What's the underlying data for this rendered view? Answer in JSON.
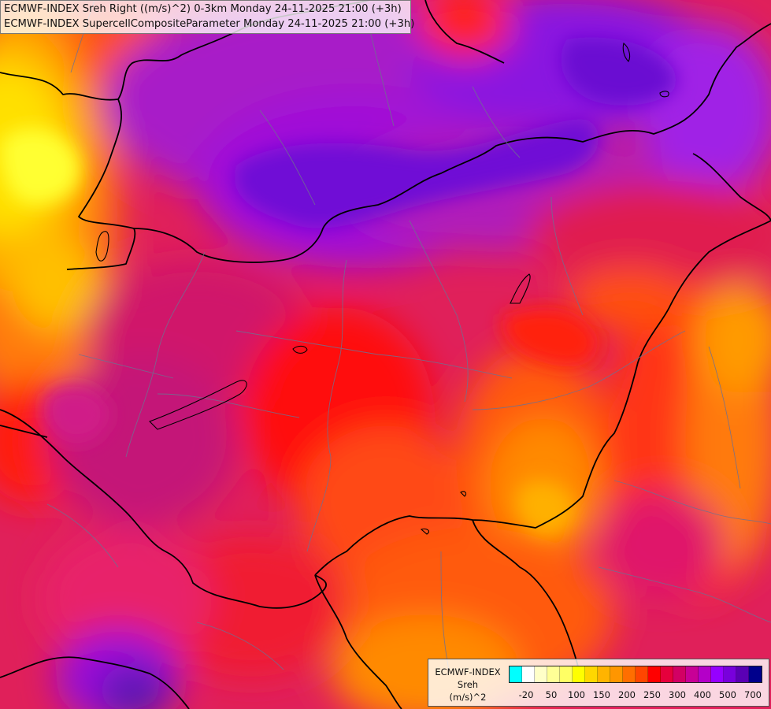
{
  "header": {
    "line1": "ECMWF-INDEX Sreh Right ((m/s)^2) 0-3km Monday 24-11-2025 21:00 (+3h)",
    "line2": "ECMWF-INDEX SupercellCompositeParameter Monday 24-11-2025 21:00 (+3h)"
  },
  "legend": {
    "title_line1": "ECMWF-INDEX",
    "title_line2": "Sreh",
    "title_line3": "(m/s)^2",
    "colors": [
      "#00ffff",
      "#ffffff",
      "#ffffc8",
      "#ffff96",
      "#ffff64",
      "#ffff00",
      "#ffd700",
      "#ffb400",
      "#ff9600",
      "#ff6e00",
      "#ff4600",
      "#ff0000",
      "#e6003c",
      "#d20064",
      "#c80096",
      "#b400c8",
      "#9600ff",
      "#7800dc",
      "#5a00b4",
      "#00008c"
    ],
    "ticks": [
      {
        "label": "-20",
        "cell": 1
      },
      {
        "label": "50",
        "cell": 3
      },
      {
        "label": "100",
        "cell": 5
      },
      {
        "label": "150",
        "cell": 7
      },
      {
        "label": "200",
        "cell": 9
      },
      {
        "label": "250",
        "cell": 11
      },
      {
        "label": "300",
        "cell": 13
      },
      {
        "label": "400",
        "cell": 15
      },
      {
        "label": "500",
        "cell": 17
      },
      {
        "label": "700",
        "cell": 19
      }
    ]
  }
}
